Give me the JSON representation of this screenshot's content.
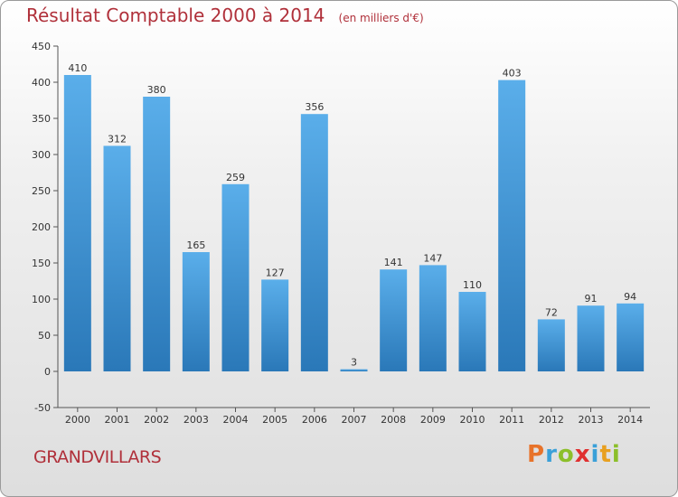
{
  "header": {
    "title": "Résultat Comptable 2000 à 2014",
    "subtitle": "(en milliers d'€)"
  },
  "footer": {
    "commune": "GRANDVILLARS",
    "brand": "Proxiti"
  },
  "colors": {
    "title": "#b0303a",
    "bar_top": "#5aaeea",
    "bar_bottom": "#2a78b8",
    "brand_letters": [
      "#e8732a",
      "#3aa0d8",
      "#8cbf2a",
      "#e03030",
      "#3aa0d8",
      "#e8a020",
      "#8cbf2a"
    ]
  },
  "chart_data": {
    "type": "bar",
    "title": "Résultat Comptable 2000 à 2014",
    "subtitle": "(en milliers d'€)",
    "xlabel": "",
    "ylabel": "",
    "categories": [
      "2000",
      "2001",
      "2002",
      "2003",
      "2004",
      "2005",
      "2006",
      "2007",
      "2008",
      "2009",
      "2010",
      "2011",
      "2012",
      "2013",
      "2014"
    ],
    "values": [
      410,
      312,
      380,
      165,
      259,
      127,
      356,
      3,
      141,
      147,
      110,
      403,
      72,
      91,
      94
    ],
    "ylim": [
      -50,
      450
    ],
    "yticks": [
      -50,
      0,
      50,
      100,
      150,
      200,
      250,
      300,
      350,
      400,
      450
    ],
    "grid": false,
    "legend": "none"
  }
}
